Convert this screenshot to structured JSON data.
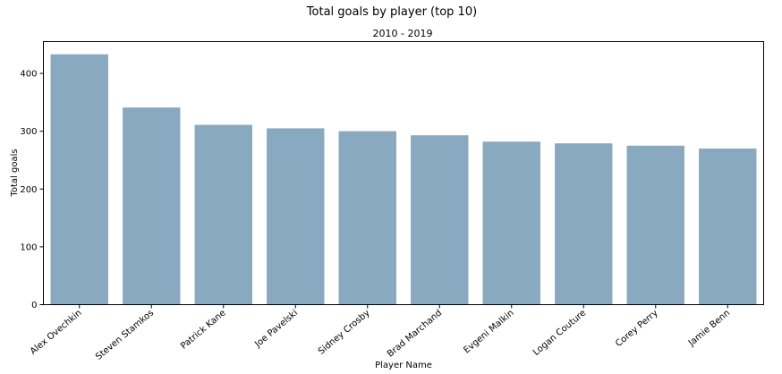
{
  "chart_data": {
    "type": "bar",
    "title": "Total goals by player (top 10)",
    "subtitle": "2010 - 2019",
    "xlabel": "Player Name",
    "ylabel": "Total goals",
    "categories": [
      "Alex Ovechkin",
      "Steven Stamkos",
      "Patrick Kane",
      "Joe Pavelski",
      "Sidney Crosby",
      "Brad Marchand",
      "Evgeni Malkin",
      "Logan Couture",
      "Corey Perry",
      "Jamie Benn"
    ],
    "values": [
      433,
      341,
      311,
      305,
      300,
      293,
      282,
      279,
      275,
      270
    ],
    "ylim": [
      0,
      455
    ],
    "yticks": [
      0,
      100,
      200,
      300,
      400
    ],
    "grid": false,
    "legend": "none",
    "bar_color": "#89a9c0"
  }
}
